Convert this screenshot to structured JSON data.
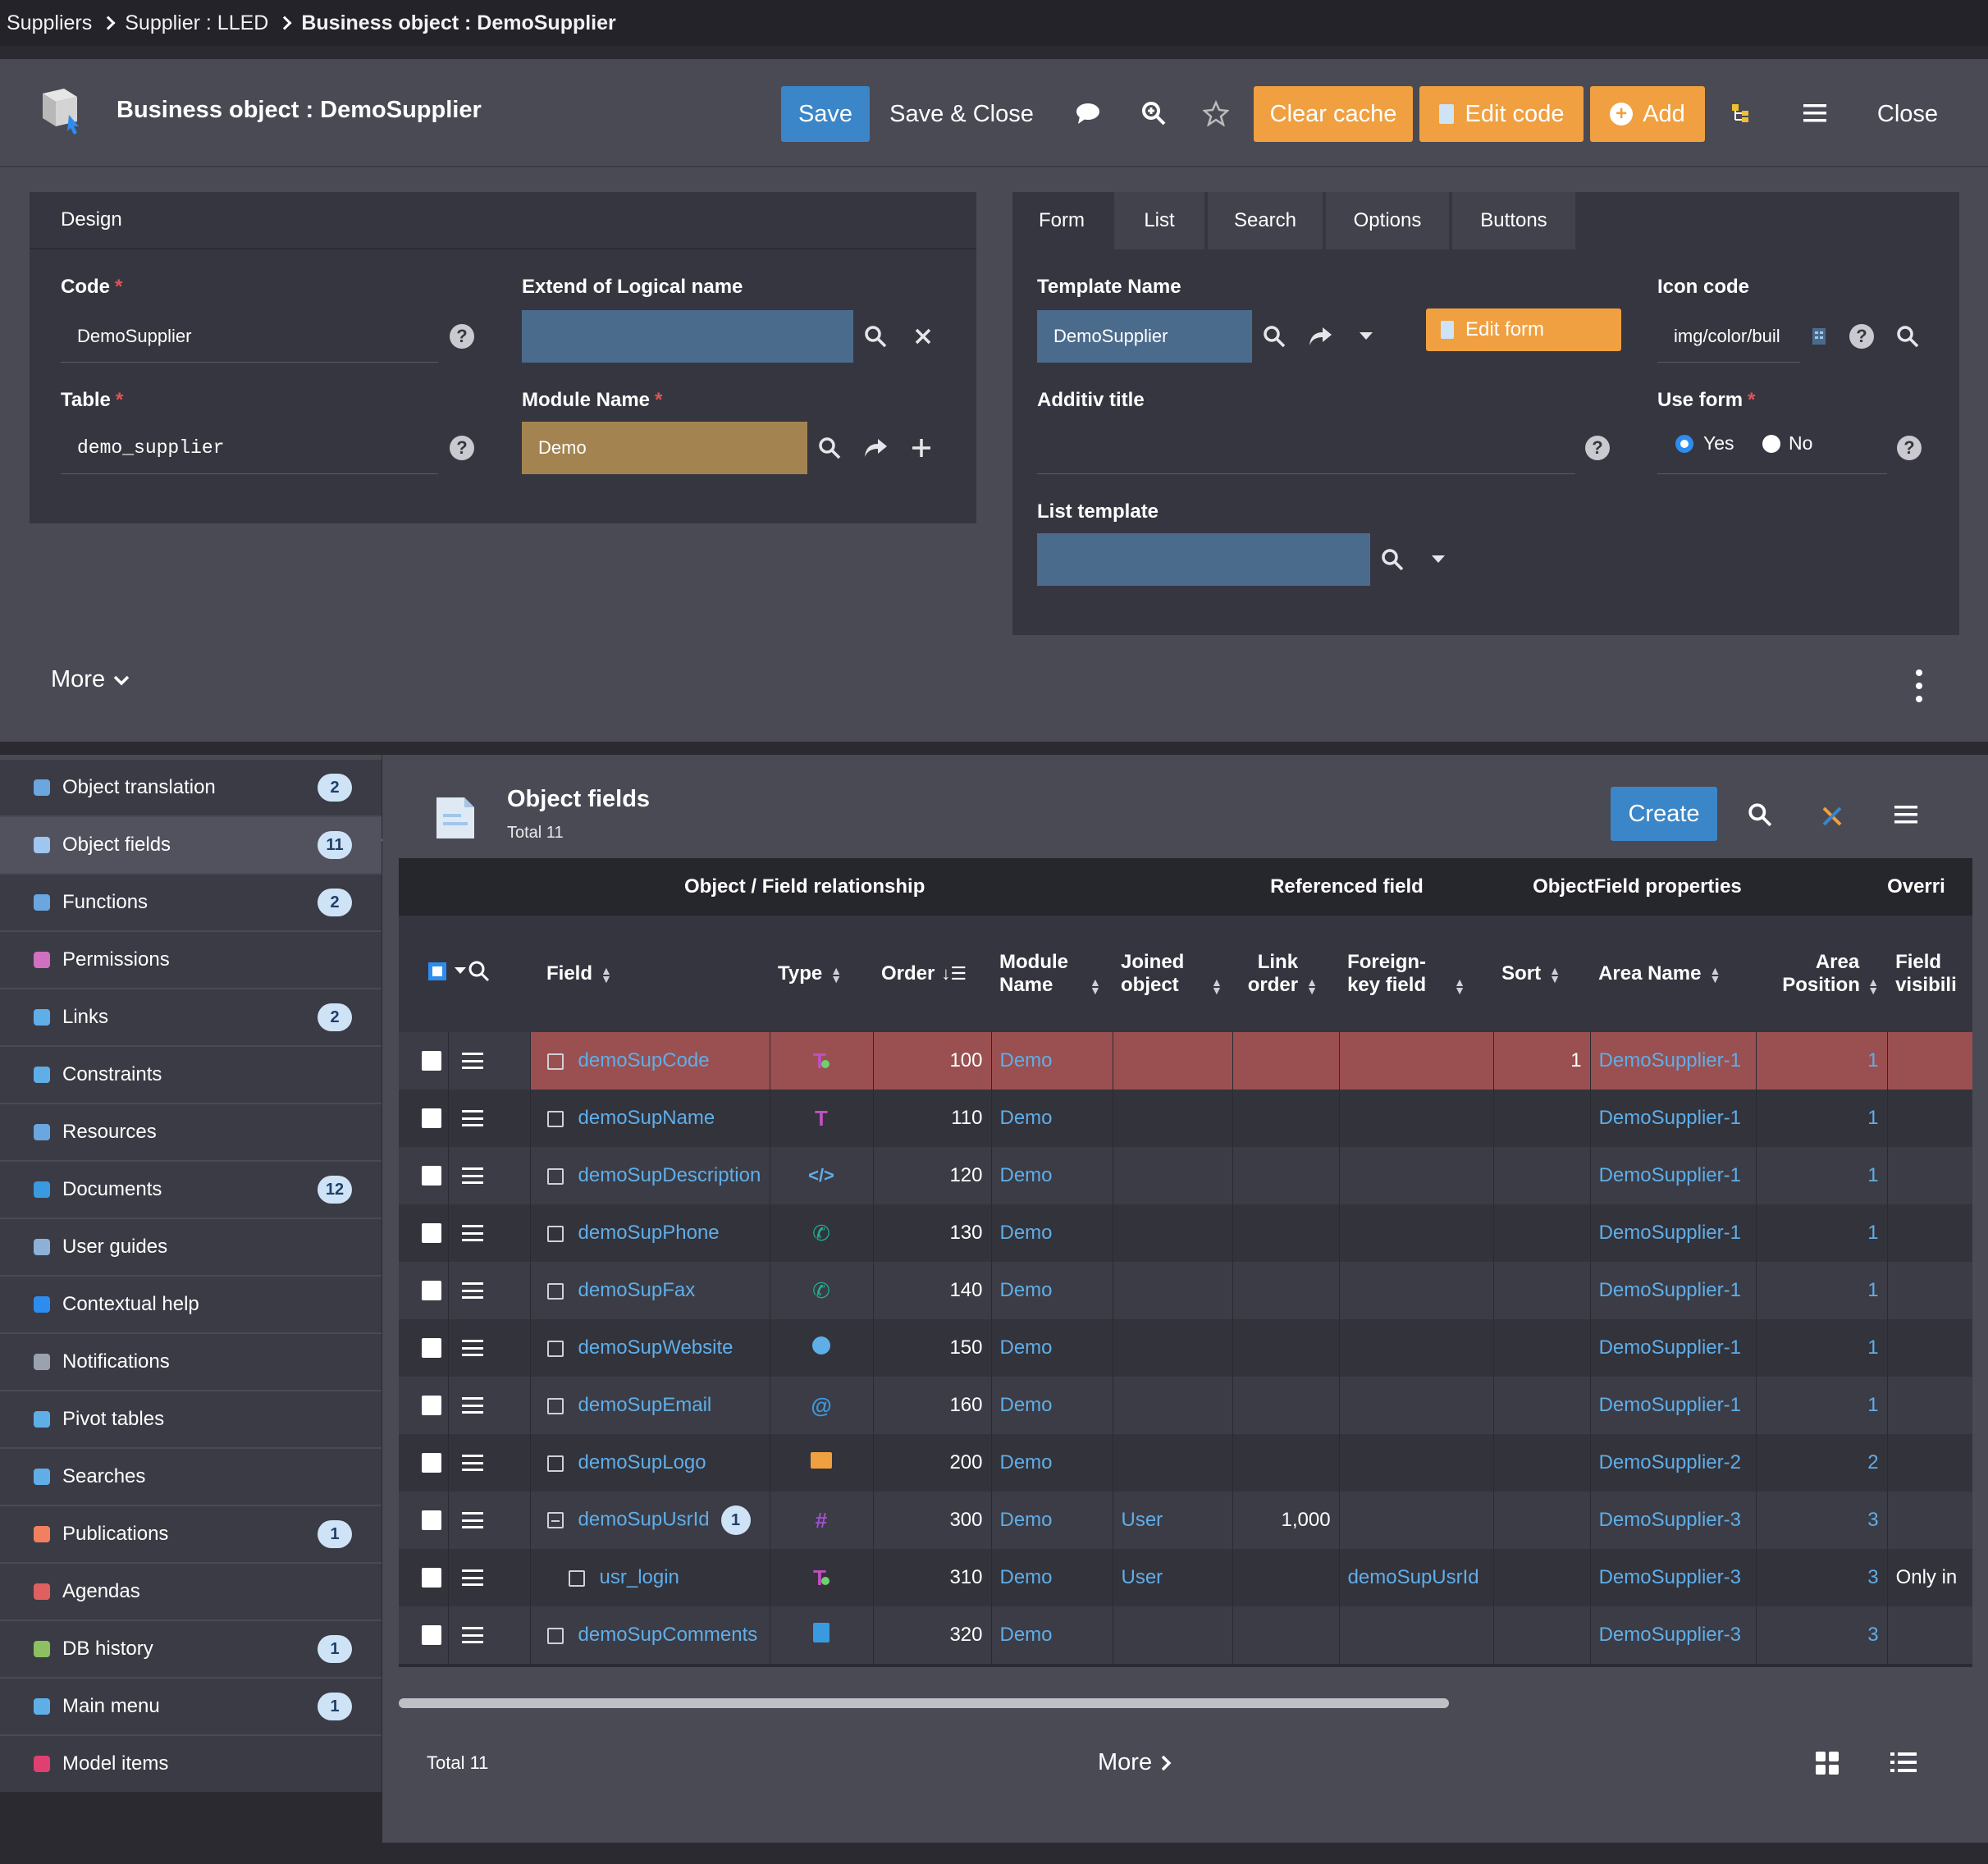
{
  "breadcrumb": [
    "Suppliers",
    "Supplier : LLED",
    "Business object : DemoSupplier"
  ],
  "header": {
    "title": "Business object : DemoSupplier",
    "save": "Save",
    "save_close": "Save & Close",
    "clear_cache": "Clear cache",
    "edit_code": "Edit code",
    "add": "Add",
    "close": "Close"
  },
  "design": {
    "title": "Design",
    "code_label": "Code",
    "code_value": "DemoSupplier",
    "extend_label": "Extend of Logical name",
    "extend_value": "",
    "table_label": "Table",
    "table_value": "demo_supplier",
    "module_label": "Module Name",
    "module_value": "Demo"
  },
  "tabs": [
    "Form",
    "List",
    "Search",
    "Options",
    "Buttons"
  ],
  "form_tab": {
    "template_label": "Template Name",
    "template_value": "DemoSupplier",
    "edit_form": "Edit form",
    "icon_label": "Icon code",
    "icon_value": "img/color/buil",
    "additiv_label": "Additiv title",
    "additiv_value": "",
    "use_form_label": "Use form",
    "yes": "Yes",
    "no": "No",
    "list_template_label": "List template",
    "list_template_value": ""
  },
  "more_label": "More",
  "sidebar": [
    {
      "label": "Object translation",
      "badge": "2",
      "icon": "translate-icon",
      "color": "#6aa6e0"
    },
    {
      "label": "Object fields",
      "badge": "11",
      "icon": "fields-icon",
      "color": "#9fc6ee"
    },
    {
      "label": "Functions",
      "badge": "2",
      "icon": "function-icon",
      "color": "#6aa6e0"
    },
    {
      "label": "Permissions",
      "badge": "",
      "icon": "permissions-icon",
      "color": "#d070c0"
    },
    {
      "label": "Links",
      "badge": "2",
      "icon": "link-icon",
      "color": "#5faee8"
    },
    {
      "label": "Constraints",
      "badge": "",
      "icon": "braces-icon",
      "color": "#5faee8"
    },
    {
      "label": "Resources",
      "badge": "",
      "icon": "resource-icon",
      "color": "#6aa6e0"
    },
    {
      "label": "Documents",
      "badge": "12",
      "icon": "document-icon",
      "color": "#3a9ae0"
    },
    {
      "label": "User guides",
      "badge": "",
      "icon": "plane-icon",
      "color": "#8cb0d8"
    },
    {
      "label": "Contextual help",
      "badge": "",
      "icon": "help-icon",
      "color": "#2d8cf0"
    },
    {
      "label": "Notifications",
      "badge": "",
      "icon": "gear-icon",
      "color": "#9aa2b0"
    },
    {
      "label": "Pivot tables",
      "badge": "",
      "icon": "pivot-icon",
      "color": "#5faee8"
    },
    {
      "label": "Searches",
      "badge": "",
      "icon": "search-icon",
      "color": "#5faee8"
    },
    {
      "label": "Publications",
      "badge": "1",
      "icon": "publication-icon",
      "color": "#f08060"
    },
    {
      "label": "Agendas",
      "badge": "",
      "icon": "calendar-icon",
      "color": "#e06060"
    },
    {
      "label": "DB history",
      "badge": "1",
      "icon": "history-icon",
      "color": "#8cc060"
    },
    {
      "label": "Main menu",
      "badge": "1",
      "icon": "menu-icon",
      "color": "#5faee8"
    },
    {
      "label": "Model items",
      "badge": "",
      "icon": "share-icon",
      "color": "#e04070"
    }
  ],
  "fields_panel": {
    "title": "Object fields",
    "total": "Total 11",
    "create": "Create",
    "footer_total": "Total 11",
    "footer_more": "More"
  },
  "table": {
    "groups": [
      "Object / Field relationship",
      "Referenced field",
      "ObjectField properties",
      "Overri"
    ],
    "columns": [
      "Field",
      "Type",
      "Order",
      "Module Name",
      "Joined object",
      "Link order",
      "Foreign-key field",
      "Sort",
      "Area Name",
      "Area Position",
      "Field visibili"
    ],
    "rows": [
      {
        "field": "demoSupCode",
        "type": "text-check",
        "order": "100",
        "module": "Demo",
        "joined": "",
        "link_order": "",
        "fk": "",
        "sort": "1",
        "area": "DemoSupplier-1",
        "pos": "1",
        "vis": "",
        "badge": "",
        "child": false,
        "selected": true
      },
      {
        "field": "demoSupName",
        "type": "text",
        "order": "110",
        "module": "Demo",
        "joined": "",
        "link_order": "",
        "fk": "",
        "sort": "",
        "area": "DemoSupplier-1",
        "pos": "1",
        "vis": "",
        "badge": "",
        "child": false,
        "selected": false
      },
      {
        "field": "demoSupDescription",
        "type": "code",
        "order": "120",
        "module": "Demo",
        "joined": "",
        "link_order": "",
        "fk": "",
        "sort": "",
        "area": "DemoSupplier-1",
        "pos": "1",
        "vis": "",
        "badge": "",
        "child": false,
        "selected": false
      },
      {
        "field": "demoSupPhone",
        "type": "phone",
        "order": "130",
        "module": "Demo",
        "joined": "",
        "link_order": "",
        "fk": "",
        "sort": "",
        "area": "DemoSupplier-1",
        "pos": "1",
        "vis": "",
        "badge": "",
        "child": false,
        "selected": false
      },
      {
        "field": "demoSupFax",
        "type": "phone",
        "order": "140",
        "module": "Demo",
        "joined": "",
        "link_order": "",
        "fk": "",
        "sort": "",
        "area": "DemoSupplier-1",
        "pos": "1",
        "vis": "",
        "badge": "",
        "child": false,
        "selected": false
      },
      {
        "field": "demoSupWebsite",
        "type": "url",
        "order": "150",
        "module": "Demo",
        "joined": "",
        "link_order": "",
        "fk": "",
        "sort": "",
        "area": "DemoSupplier-1",
        "pos": "1",
        "vis": "",
        "badge": "",
        "child": false,
        "selected": false
      },
      {
        "field": "demoSupEmail",
        "type": "email",
        "order": "160",
        "module": "Demo",
        "joined": "",
        "link_order": "",
        "fk": "",
        "sort": "",
        "area": "DemoSupplier-1",
        "pos": "1",
        "vis": "",
        "badge": "",
        "child": false,
        "selected": false
      },
      {
        "field": "demoSupLogo",
        "type": "image",
        "order": "200",
        "module": "Demo",
        "joined": "",
        "link_order": "",
        "fk": "",
        "sort": "",
        "area": "DemoSupplier-2",
        "pos": "2",
        "vis": "",
        "badge": "",
        "child": false,
        "selected": false
      },
      {
        "field": "demoSupUsrId",
        "type": "id",
        "order": "300",
        "module": "Demo",
        "joined": "User",
        "link_order": "1,000",
        "fk": "",
        "sort": "",
        "area": "DemoSupplier-3",
        "pos": "3",
        "vis": "",
        "badge": "1",
        "child": false,
        "selected": false
      },
      {
        "field": "usr_login",
        "type": "text-check",
        "order": "310",
        "module": "Demo",
        "joined": "User",
        "link_order": "",
        "fk": "demoSupUsrId",
        "sort": "",
        "area": "DemoSupplier-3",
        "pos": "3",
        "vis": "Only in",
        "badge": "",
        "child": true,
        "selected": false
      },
      {
        "field": "demoSupComments",
        "type": "notepad",
        "order": "320",
        "module": "Demo",
        "joined": "",
        "link_order": "",
        "fk": "",
        "sort": "",
        "area": "DemoSupplier-3",
        "pos": "3",
        "vis": "",
        "badge": "",
        "child": false,
        "selected": false
      }
    ]
  }
}
